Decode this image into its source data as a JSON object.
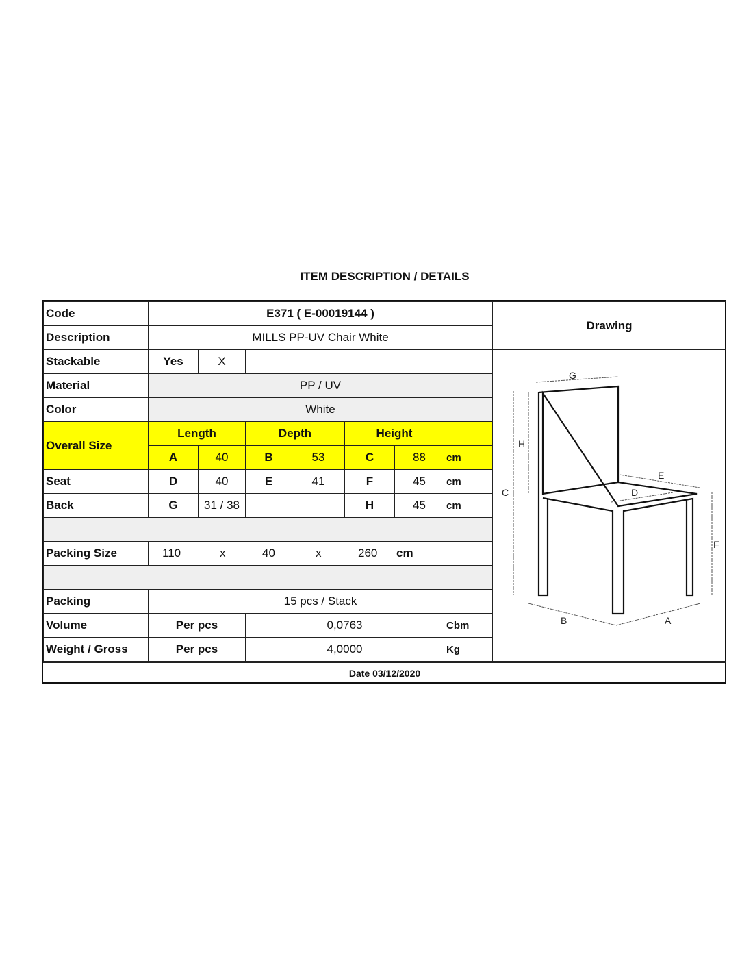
{
  "title": "ITEM DESCRIPTION / DETAILS",
  "code": {
    "label": "Code",
    "value": "E371 ( E-00019144 )"
  },
  "description": {
    "label": "Description",
    "value": "MILLS PP-UV Chair White"
  },
  "stackable": {
    "label": "Stackable",
    "yes": "Yes",
    "mark": "X"
  },
  "material": {
    "label": "Material",
    "value": "PP  / UV"
  },
  "color": {
    "label": "Color",
    "value": "White"
  },
  "overall": {
    "label": "Overall Size",
    "length": "Length",
    "depth": "Depth",
    "height": "Height",
    "a": "A",
    "a_val": "40",
    "b": "B",
    "b_val": "53",
    "c": "C",
    "c_val": "88",
    "unit": "cm"
  },
  "seat": {
    "label": "Seat",
    "d": "D",
    "d_val": "40",
    "e": "E",
    "e_val": "41",
    "f": "F",
    "f_val": "45",
    "unit": "cm"
  },
  "back": {
    "label": "Back",
    "g": "G",
    "g_val": "31 / 38",
    "h": "H",
    "h_val": "45",
    "unit": "cm"
  },
  "packing_size": {
    "label": "Packing Size",
    "l": "110",
    "x1": "x",
    "w": "40",
    "x2": "x",
    "h": "260",
    "unit": "cm"
  },
  "packing": {
    "label": "Packing",
    "value": "15 pcs / Stack"
  },
  "volume": {
    "label": "Volume",
    "per": "Per pcs",
    "value": "0,0763",
    "unit": "Cbm"
  },
  "weight": {
    "label": "Weight / Gross",
    "per": "Per pcs",
    "value": "4,0000",
    "unit": "Kg"
  },
  "drawing": {
    "label": "Drawing",
    "labels": {
      "a": "A",
      "b": "B",
      "c": "C",
      "d": "D",
      "e": "E",
      "f": "F",
      "g": "G",
      "h": "H"
    }
  },
  "date": "Date 03/12/2020",
  "colors": {
    "highlight": "#ffff00",
    "shade": "#efefef"
  }
}
